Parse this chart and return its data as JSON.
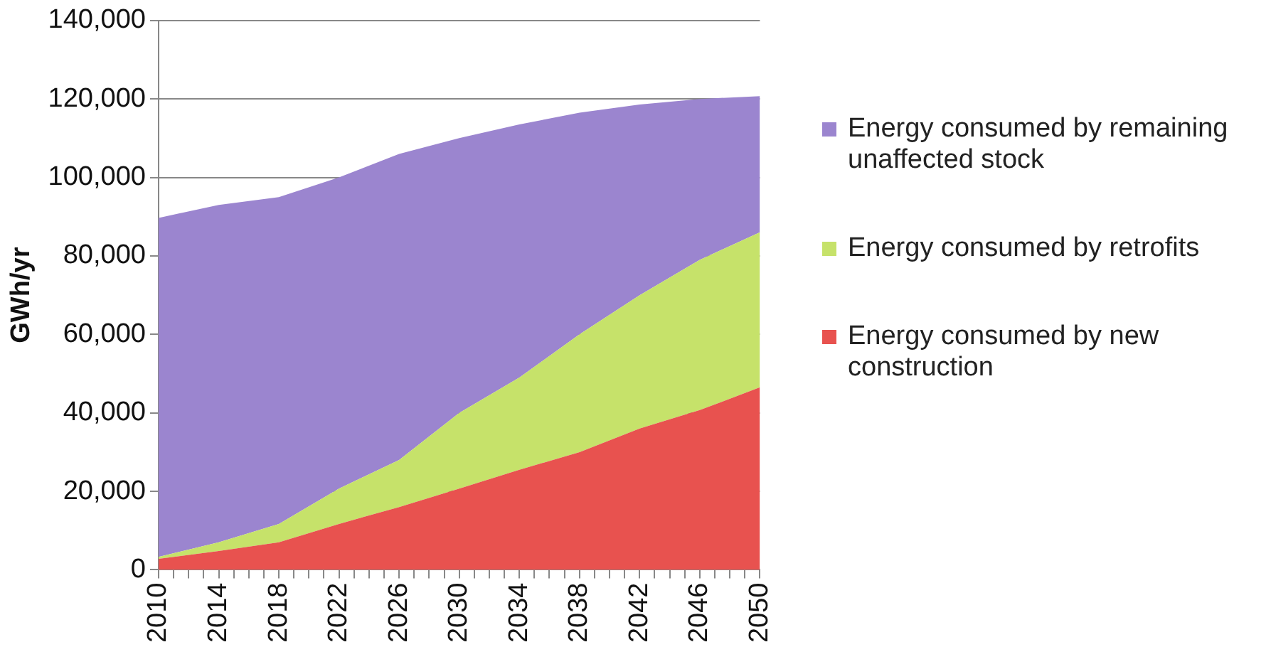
{
  "chart_data": {
    "type": "area",
    "stacked": true,
    "ylabel": "GWh/yr",
    "x": [
      2010,
      2014,
      2018,
      2022,
      2026,
      2030,
      2034,
      2038,
      2042,
      2046,
      2050
    ],
    "xlim": [
      2010,
      2050
    ],
    "xticks": [
      2010,
      {
        "value": 2011,
        "label": null
      },
      {
        "value": 2012,
        "label": null
      },
      {
        "value": 2013,
        "label": null
      },
      2014,
      {
        "value": 2015,
        "label": null
      },
      {
        "value": 2016,
        "label": null
      },
      {
        "value": 2017,
        "label": null
      },
      2018,
      {
        "value": 2019,
        "label": null
      },
      {
        "value": 2020,
        "label": null
      },
      {
        "value": 2021,
        "label": null
      },
      2022,
      {
        "value": 2023,
        "label": null
      },
      {
        "value": 2024,
        "label": null
      },
      {
        "value": 2025,
        "label": null
      },
      2026,
      {
        "value": 2027,
        "label": null
      },
      {
        "value": 2028,
        "label": null
      },
      {
        "value": 2029,
        "label": null
      },
      2030,
      {
        "value": 2031,
        "label": null
      },
      {
        "value": 2032,
        "label": null
      },
      {
        "value": 2033,
        "label": null
      },
      2034,
      {
        "value": 2035,
        "label": null
      },
      {
        "value": 2036,
        "label": null
      },
      {
        "value": 2037,
        "label": null
      },
      2038,
      {
        "value": 2039,
        "label": null
      },
      {
        "value": 2040,
        "label": null
      },
      {
        "value": 2041,
        "label": null
      },
      2042,
      {
        "value": 2043,
        "label": null
      },
      {
        "value": 2044,
        "label": null
      },
      {
        "value": 2045,
        "label": null
      },
      2046,
      {
        "value": 2047,
        "label": null
      },
      {
        "value": 2048,
        "label": null
      },
      {
        "value": 2049,
        "label": null
      },
      2050
    ],
    "ylim": [
      0,
      140000
    ],
    "yticks": [
      {
        "value": 0,
        "label": "0"
      },
      {
        "value": 20000,
        "label": "20,000"
      },
      {
        "value": 40000,
        "label": "40,000"
      },
      {
        "value": 60000,
        "label": "60,000"
      },
      {
        "value": 80000,
        "label": "80,000"
      },
      {
        "value": 100000,
        "label": "100,000"
      },
      {
        "value": 120000,
        "label": "120,000"
      },
      {
        "value": 140000,
        "label": "140,000"
      }
    ],
    "grid": "y",
    "legend": "right",
    "series": [
      {
        "name": "Energy consumed by new construction",
        "color": "#e8524f",
        "values": [
          2800,
          4800,
          7000,
          11700,
          16000,
          20700,
          25500,
          30000,
          36000,
          40700,
          46500
        ]
      },
      {
        "name": "Energy consumed by retrofits",
        "color": "#c6e26a",
        "values": [
          500,
          2200,
          4700,
          9000,
          12000,
          19300,
          23500,
          30000,
          34000,
          38300,
          39500
        ]
      },
      {
        "name": "Energy consumed by remaining unaffected stock",
        "color": "#9b85cf",
        "values": [
          86400,
          86000,
          83300,
          79300,
          78000,
          70000,
          64500,
          56500,
          48600,
          41000,
          34700
        ]
      }
    ]
  }
}
